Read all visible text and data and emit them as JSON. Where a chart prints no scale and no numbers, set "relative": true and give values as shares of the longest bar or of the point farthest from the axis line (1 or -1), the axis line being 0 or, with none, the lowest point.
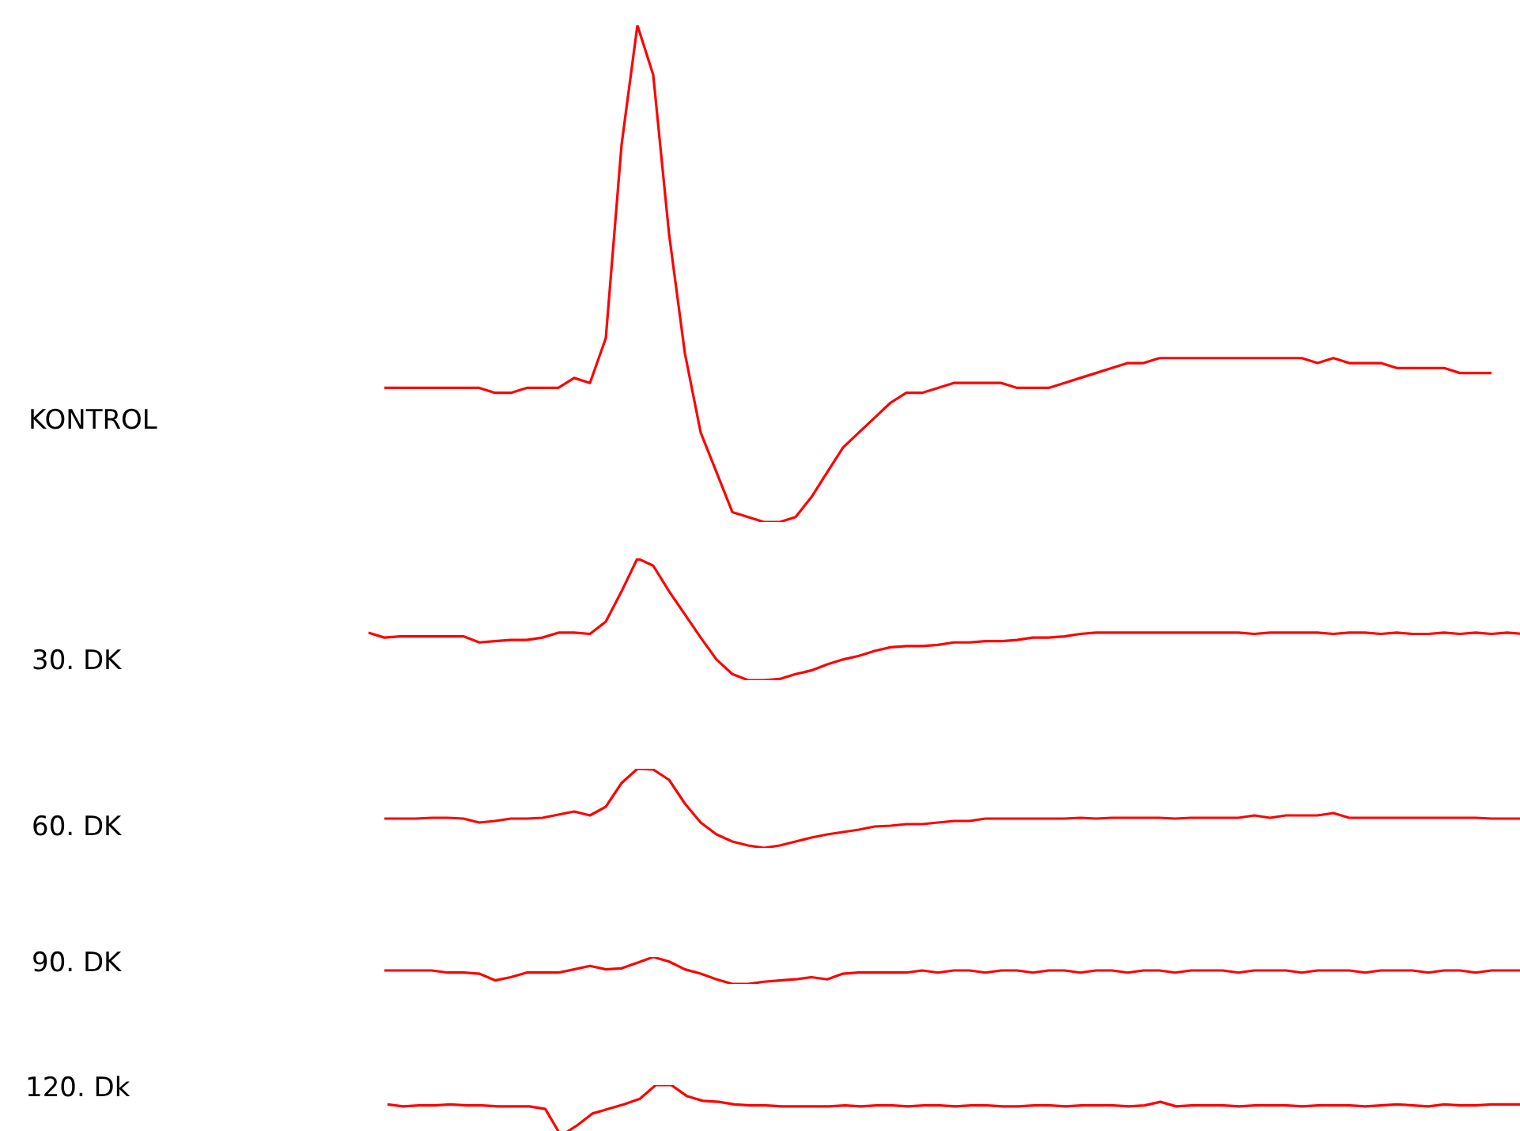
{
  "chart_data": [
    {
      "type": "line",
      "relative": true,
      "ylabel": "KONTROL",
      "categories": [
        null,
        null,
        null,
        null,
        null,
        null,
        null,
        null,
        null,
        null,
        null,
        null,
        null,
        null,
        null,
        null,
        null,
        null,
        null,
        null,
        null,
        null,
        null,
        null,
        null,
        null,
        null,
        null,
        null,
        null,
        null,
        null,
        null,
        null,
        null,
        null,
        null,
        null,
        null,
        null,
        null,
        null,
        null,
        null,
        null,
        null,
        null,
        null,
        null,
        null,
        null,
        null,
        null,
        null,
        null,
        null,
        null,
        null,
        null,
        null,
        null,
        null,
        null,
        null,
        null,
        null,
        null,
        null,
        null,
        null,
        null
      ],
      "series": [
        {
          "color": "#ff0000",
          "values": [
            0.27,
            0.27,
            0.27,
            0.27,
            0.27,
            0.27,
            0.27,
            0.26,
            0.26,
            0.27,
            0.27,
            0.27,
            0.29,
            0.28,
            0.37,
            0.76,
            1,
            0.9,
            0.58,
            0.34,
            0.18,
            0.1,
            0.02,
            0.01,
            0,
            0,
            0.01,
            0.05,
            0.1,
            0.15,
            0.18,
            0.21,
            0.24,
            0.26,
            0.26,
            0.27,
            0.28,
            0.28,
            0.28,
            0.28,
            0.27,
            0.27,
            0.27,
            0.28,
            0.29,
            0.3,
            0.31,
            0.32,
            0.32,
            0.33,
            0.33,
            0.33,
            0.33,
            0.33,
            0.33,
            0.33,
            0.33,
            0.33,
            0.33,
            0.32,
            0.33,
            0.32,
            0.32,
            0.32,
            0.31,
            0.31,
            0.31,
            0.31,
            0.3,
            0.3,
            0.3
          ]
        }
      ]
    },
    {
      "type": "line",
      "relative": true,
      "ylabel": "30. DK",
      "categories": [
        null,
        null,
        null,
        null,
        null,
        null,
        null,
        null,
        null,
        null,
        null,
        null,
        null,
        null,
        null,
        null,
        null,
        null,
        null,
        null,
        null,
        null,
        null,
        null,
        null,
        null,
        null,
        null,
        null,
        null,
        null,
        null,
        null,
        null,
        null,
        null,
        null,
        null,
        null,
        null,
        null,
        null,
        null,
        null,
        null,
        null,
        null,
        null,
        null,
        null,
        null,
        null,
        null,
        null,
        null,
        null,
        null,
        null,
        null,
        null,
        null,
        null,
        null,
        null,
        null,
        null,
        null,
        null,
        null,
        null,
        null,
        null,
        null,
        null
      ],
      "series": [
        {
          "color": "#ff0000",
          "values": [
            0.39,
            0.35,
            0.36,
            0.36,
            0.36,
            0.36,
            0.36,
            0.31,
            0.32,
            0.33,
            0.33,
            0.35,
            0.39,
            0.39,
            0.38,
            0.48,
            0.73,
            1,
            0.94,
            0.73,
            0.54,
            0.35,
            0.17,
            0.05,
            0,
            0,
            0.01,
            0.05,
            0.08,
            0.13,
            0.17,
            0.2,
            0.24,
            0.27,
            0.28,
            0.28,
            0.29,
            0.31,
            0.31,
            0.32,
            0.32,
            0.33,
            0.35,
            0.35,
            0.36,
            0.38,
            0.39,
            0.39,
            0.39,
            0.39,
            0.39,
            0.39,
            0.39,
            0.39,
            0.39,
            0.39,
            0.38,
            0.39,
            0.39,
            0.39,
            0.39,
            0.38,
            0.39,
            0.39,
            0.38,
            0.39,
            0.38,
            0.38,
            0.39,
            0.38,
            0.39,
            0.38,
            0.39,
            0.38
          ]
        }
      ]
    },
    {
      "type": "line",
      "relative": true,
      "ylabel": "60. DK",
      "categories": [
        null,
        null,
        null,
        null,
        null,
        null,
        null,
        null,
        null,
        null,
        null,
        null,
        null,
        null,
        null,
        null,
        null,
        null,
        null,
        null,
        null,
        null,
        null,
        null,
        null,
        null,
        null,
        null,
        null,
        null,
        null,
        null,
        null,
        null,
        null,
        null,
        null,
        null,
        null,
        null,
        null,
        null,
        null,
        null,
        null,
        null,
        null,
        null,
        null,
        null,
        null,
        null,
        null,
        null,
        null,
        null,
        null,
        null,
        null,
        null,
        null,
        null,
        null,
        null,
        null,
        null,
        null,
        null,
        null,
        null,
        null,
        null,
        null
      ],
      "series": [
        {
          "color": "#ff0000",
          "values": [
            0.37,
            0.37,
            0.37,
            0.38,
            0.38,
            0.37,
            0.32,
            0.34,
            0.37,
            0.37,
            0.38,
            0.42,
            0.46,
            0.41,
            0.52,
            0.82,
            1,
            0.99,
            0.86,
            0.56,
            0.32,
            0.17,
            0.08,
            0.03,
            0,
            0.03,
            0.08,
            0.13,
            0.17,
            0.2,
            0.23,
            0.27,
            0.28,
            0.3,
            0.3,
            0.32,
            0.34,
            0.34,
            0.37,
            0.37,
            0.37,
            0.37,
            0.37,
            0.37,
            0.38,
            0.37,
            0.38,
            0.38,
            0.38,
            0.38,
            0.37,
            0.38,
            0.38,
            0.38,
            0.38,
            0.41,
            0.38,
            0.41,
            0.41,
            0.41,
            0.44,
            0.38,
            0.38,
            0.38,
            0.38,
            0.38,
            0.38,
            0.38,
            0.38,
            0.38,
            0.37,
            0.37,
            0.37
          ]
        }
      ]
    },
    {
      "type": "line",
      "relative": true,
      "ylabel": "90. DK",
      "categories": [
        null,
        null,
        null,
        null,
        null,
        null,
        null,
        null,
        null,
        null,
        null,
        null,
        null,
        null,
        null,
        null,
        null,
        null,
        null,
        null,
        null,
        null,
        null,
        null,
        null,
        null,
        null,
        null,
        null,
        null,
        null,
        null,
        null,
        null,
        null,
        null,
        null,
        null,
        null,
        null,
        null,
        null,
        null,
        null,
        null,
        null,
        null,
        null,
        null,
        null,
        null,
        null,
        null,
        null,
        null,
        null,
        null,
        null,
        null,
        null,
        null,
        null,
        null,
        null,
        null,
        null,
        null,
        null,
        null,
        null,
        null,
        null,
        null
      ],
      "series": [
        {
          "color": "#ff0000",
          "values": [
            0.5,
            0.5,
            0.5,
            0.5,
            0.42,
            0.42,
            0.38,
            0.13,
            0.25,
            0.42,
            0.42,
            0.42,
            0.54,
            0.67,
            0.54,
            0.58,
            0.79,
            1,
            0.83,
            0.54,
            0.38,
            0.17,
            0,
            0,
            0.08,
            0.13,
            0.17,
            0.25,
            0.17,
            0.38,
            0.42,
            0.42,
            0.42,
            0.42,
            0.5,
            0.42,
            0.5,
            0.5,
            0.42,
            0.5,
            0.5,
            0.42,
            0.5,
            0.5,
            0.42,
            0.5,
            0.5,
            0.42,
            0.5,
            0.5,
            0.42,
            0.5,
            0.5,
            0.5,
            0.42,
            0.5,
            0.5,
            0.5,
            0.42,
            0.5,
            0.5,
            0.5,
            0.42,
            0.5,
            0.5,
            0.5,
            0.42,
            0.5,
            0.5,
            0.42,
            0.5,
            0.5,
            0.5
          ]
        }
      ]
    },
    {
      "type": "line",
      "relative": true,
      "ylabel": "120. Dk",
      "categories": [
        null,
        null,
        null,
        null,
        null,
        null,
        null,
        null,
        null,
        null,
        null,
        null,
        null,
        null,
        null,
        null,
        null,
        null,
        null,
        null,
        null,
        null,
        null,
        null,
        null,
        null,
        null,
        null,
        null,
        null,
        null,
        null,
        null,
        null,
        null,
        null,
        null,
        null,
        null,
        null,
        null,
        null,
        null,
        null,
        null,
        null,
        null,
        null,
        null,
        null,
        null,
        null,
        null,
        null,
        null,
        null,
        null,
        null,
        null,
        null,
        null,
        null,
        null,
        null,
        null,
        null,
        null,
        null,
        null,
        null,
        null,
        null,
        null
      ],
      "series": [
        {
          "color": "#ff0000",
          "values": [
            0.62,
            0.58,
            0.6,
            0.6,
            0.62,
            0.6,
            0.6,
            0.58,
            0.58,
            0.58,
            0.53,
            0,
            0.2,
            0.44,
            0.53,
            0.62,
            0.73,
            1,
            1,
            0.78,
            0.69,
            0.67,
            0.62,
            0.6,
            0.6,
            0.58,
            0.58,
            0.58,
            0.58,
            0.6,
            0.58,
            0.6,
            0.6,
            0.58,
            0.6,
            0.6,
            0.58,
            0.6,
            0.6,
            0.58,
            0.58,
            0.6,
            0.6,
            0.58,
            0.6,
            0.6,
            0.6,
            0.58,
            0.6,
            0.67,
            0.58,
            0.6,
            0.6,
            0.6,
            0.58,
            0.6,
            0.6,
            0.6,
            0.58,
            0.6,
            0.6,
            0.6,
            0.58,
            0.6,
            0.62,
            0.6,
            0.58,
            0.62,
            0.6,
            0.6,
            0.62,
            0.62,
            0.62
          ]
        }
      ]
    }
  ]
}
